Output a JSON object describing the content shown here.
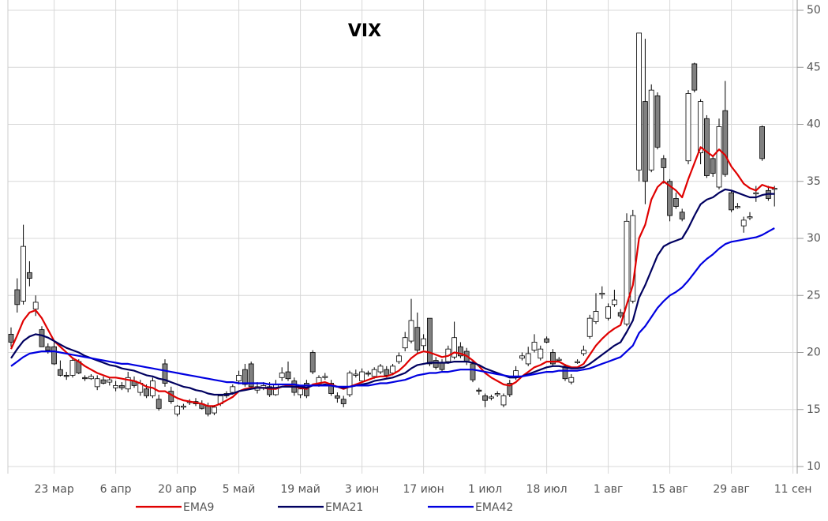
{
  "chart_data": {
    "type": "candlestick",
    "title": "VIX",
    "categories": [
      null,
      null,
      null,
      null,
      null,
      null,
      null,
      "23 мар",
      null,
      null,
      null,
      null,
      null,
      null,
      null,
      null,
      null,
      "6 апр",
      null,
      null,
      null,
      null,
      null,
      null,
      null,
      null,
      null,
      "20 апр",
      null,
      null,
      null,
      null,
      null,
      null,
      null,
      null,
      null,
      "5 май",
      null,
      null,
      null,
      null,
      null,
      null,
      null,
      null,
      null,
      "19 май",
      null,
      null,
      null,
      null,
      null,
      null,
      null,
      null,
      null,
      "3 июн",
      null,
      null,
      null,
      null,
      null,
      null,
      null,
      null,
      null,
      "17 июн",
      null,
      null,
      null,
      null,
      null,
      null,
      null,
      null,
      null,
      "1 июл",
      null,
      null,
      null,
      null,
      null,
      null,
      null,
      null,
      null,
      "18 июл",
      null,
      null,
      null,
      null,
      null,
      null,
      null,
      null,
      null,
      "1 авг",
      null,
      null,
      null,
      null,
      null,
      null,
      null,
      null,
      null,
      "15 авг",
      null,
      null,
      null,
      null,
      null,
      null,
      null,
      null,
      null,
      "29 авг",
      null,
      null,
      null,
      null,
      null,
      null,
      null,
      null,
      null,
      "11 сен"
    ],
    "ohlc": [
      [
        21.6,
        22.2,
        20.5,
        20.9
      ],
      [
        25.5,
        26.5,
        23.5,
        24.2
      ],
      [
        24.5,
        31.2,
        24.2,
        29.3
      ],
      [
        27,
        28,
        25.8,
        26.5
      ],
      [
        23.8,
        25,
        23.2,
        24.4
      ],
      [
        22,
        22.3,
        20.5,
        20.5
      ],
      [
        20.5,
        20.8,
        19.9,
        20.2
      ],
      [
        20.5,
        20.9,
        18.9,
        19
      ],
      [
        18.5,
        19.3,
        17.9,
        18
      ],
      [
        18,
        18.3,
        17.6,
        17.9
      ],
      [
        18,
        19.6,
        17.8,
        19.3
      ],
      [
        19.2,
        19.4,
        18.1,
        18.2
      ],
      [
        17.8,
        18,
        17.5,
        17.7
      ],
      [
        17.7,
        18.1,
        17.6,
        17.9
      ],
      [
        17,
        18,
        16.7,
        17.7
      ],
      [
        17.6,
        17.9,
        17.2,
        17.3
      ],
      [
        17.4,
        17.8,
        17.1,
        17.6
      ],
      [
        16.9,
        17.5,
        16.6,
        17.1
      ],
      [
        17.1,
        17.4,
        16.7,
        16.9
      ],
      [
        16.8,
        18.3,
        16.5,
        17.8
      ],
      [
        17.5,
        17.9,
        16.9,
        17.1
      ],
      [
        16.5,
        17.6,
        16.2,
        17.3
      ],
      [
        16.8,
        17.2,
        16,
        16.2
      ],
      [
        16.2,
        17.8,
        16,
        17.5
      ],
      [
        15.9,
        16.3,
        14.9,
        15.1
      ],
      [
        19,
        19.4,
        17,
        17.3
      ],
      [
        16.6,
        17,
        15.5,
        15.7
      ],
      [
        14.6,
        15.4,
        14.4,
        15.3
      ],
      [
        15.2,
        15.5,
        15,
        15.3
      ],
      [
        15.6,
        15.9,
        15.4,
        15.7
      ],
      [
        15.7,
        16,
        15.3,
        15.5
      ],
      [
        15.5,
        15.8,
        15,
        15.1
      ],
      [
        15.3,
        15.6,
        14.4,
        14.6
      ],
      [
        14.7,
        15.4,
        14.5,
        15.2
      ],
      [
        15.5,
        16.3,
        15.3,
        16.2
      ],
      [
        16.2,
        16.6,
        16,
        16.4
      ],
      [
        16.5,
        17.2,
        16.3,
        17
      ],
      [
        17.5,
        18.4,
        17.2,
        18
      ],
      [
        18.5,
        19,
        17,
        17.2
      ],
      [
        19,
        19.2,
        16.8,
        17
      ],
      [
        16.7,
        17.4,
        16.4,
        17
      ],
      [
        16.9,
        17.4,
        16.7,
        17.1
      ],
      [
        17,
        17.4,
        16.1,
        16.3
      ],
      [
        16.3,
        17.6,
        16.2,
        17.2
      ],
      [
        17.8,
        18.7,
        17.5,
        18.2
      ],
      [
        18.3,
        19.2,
        17.5,
        17.7
      ],
      [
        17.5,
        17.8,
        16.2,
        16.5
      ],
      [
        16.3,
        17,
        16,
        16.8
      ],
      [
        17.3,
        17.6,
        16,
        16.2
      ],
      [
        20,
        20.2,
        18.1,
        18.3
      ],
      [
        17.2,
        18,
        17,
        17.8
      ],
      [
        17.8,
        18.2,
        17.6,
        17.9
      ],
      [
        17.3,
        17.6,
        16.2,
        16.4
      ],
      [
        16.2,
        16.5,
        15.6,
        16
      ],
      [
        15.9,
        16.2,
        15.2,
        15.5
      ],
      [
        16.3,
        18.4,
        16.1,
        18.2
      ],
      [
        18,
        18.5,
        17.8,
        18.1
      ],
      [
        17.5,
        18.6,
        17.3,
        18.3
      ],
      [
        18.2,
        18.4,
        17.9,
        18.1
      ],
      [
        17.9,
        18.7,
        17.7,
        18.5
      ],
      [
        18.3,
        19,
        18.1,
        18.8
      ],
      [
        18.5,
        18.8,
        17.8,
        18
      ],
      [
        18.2,
        19,
        18,
        18.8
      ],
      [
        19.2,
        20,
        19,
        19.7
      ],
      [
        20.4,
        21.8,
        20.1,
        21.3
      ],
      [
        21,
        24.7,
        20.8,
        22.8
      ],
      [
        22.2,
        23.5,
        19.9,
        20.2
      ],
      [
        20.6,
        21.6,
        20.2,
        21.2
      ],
      [
        23,
        23,
        18.8,
        19
      ],
      [
        19.3,
        19.6,
        18.5,
        18.7
      ],
      [
        19.1,
        19.4,
        18.3,
        18.5
      ],
      [
        19.2,
        20.6,
        19,
        20.3
      ],
      [
        19.6,
        22.7,
        19.4,
        21.3
      ],
      [
        20.5,
        20.9,
        19.5,
        19.7
      ],
      [
        20.1,
        20.4,
        18.9,
        19.2
      ],
      [
        19,
        19.3,
        17.4,
        17.6
      ],
      [
        16.7,
        16.9,
        16.3,
        16.6
      ],
      [
        16.2,
        16.4,
        15.2,
        15.8
      ],
      [
        16,
        16.3,
        15.8,
        16.1
      ],
      [
        16.3,
        16.6,
        16.1,
        16.4
      ],
      [
        15.4,
        16.4,
        15.2,
        16.2
      ],
      [
        17.3,
        17.6,
        16.1,
        16.3
      ],
      [
        17.8,
        18.8,
        17.6,
        18.4
      ],
      [
        19.5,
        20,
        19.3,
        19.7
      ],
      [
        19,
        20.5,
        18.8,
        19.9
      ],
      [
        20.2,
        21.6,
        20,
        20.9
      ],
      [
        19.5,
        20.6,
        19.3,
        20.3
      ],
      [
        21.2,
        21.4,
        20.8,
        20.9
      ],
      [
        20,
        20.3,
        18.8,
        19
      ],
      [
        19.3,
        19.6,
        19.1,
        19.4
      ],
      [
        18.8,
        19,
        17.5,
        17.7
      ],
      [
        17.4,
        18.1,
        17.2,
        17.8
      ],
      [
        19.1,
        19.4,
        19,
        19.2
      ],
      [
        19.9,
        20.6,
        19.7,
        20.2
      ],
      [
        21.4,
        23.3,
        21.2,
        23
      ],
      [
        22.7,
        25.2,
        22.5,
        23.6
      ],
      [
        25.1,
        25.8,
        24.7,
        25.2
      ],
      [
        23,
        24.3,
        22.8,
        24
      ],
      [
        24.2,
        25.5,
        24,
        24.6
      ],
      [
        23.5,
        23.8,
        23,
        23.2
      ],
      [
        22.5,
        32.2,
        22.3,
        31.5
      ],
      [
        24.5,
        32.5,
        24.3,
        32
      ],
      [
        36,
        48,
        35,
        48
      ],
      [
        42,
        47.5,
        33,
        35
      ],
      [
        36,
        43.5,
        35.8,
        43
      ],
      [
        42.5,
        42.8,
        37.8,
        38
      ],
      [
        37,
        37.3,
        34.8,
        36.2
      ],
      [
        35,
        35.2,
        31.5,
        32
      ],
      [
        33.5,
        34,
        32.6,
        32.8
      ],
      [
        32.3,
        32.6,
        31.5,
        31.7
      ],
      [
        36.8,
        43,
        36.5,
        42.7
      ],
      [
        45.3,
        45.4,
        42.8,
        43
      ],
      [
        37.5,
        42.2,
        36.5,
        42
      ],
      [
        40.5,
        40.8,
        35.3,
        35.5
      ],
      [
        37,
        37.3,
        35.4,
        35.7
      ],
      [
        34.5,
        40.5,
        34.3,
        39.8
      ],
      [
        41.2,
        43.8,
        35.4,
        35.6
      ],
      [
        34,
        34.2,
        32.3,
        32.5
      ],
      [
        32.7,
        33.1,
        32.6,
        32.8
      ],
      [
        31.1,
        31.9,
        30.5,
        31.6
      ],
      [
        31.8,
        32.3,
        31.6,
        31.9
      ],
      [
        33.9,
        34.6,
        33.2,
        34
      ],
      [
        39.8,
        39.9,
        36.8,
        37
      ],
      [
        34.2,
        34.6,
        33.3,
        33.5
      ],
      [
        34.3,
        34.6,
        32.8,
        34.4
      ],
      null,
      null,
      null
    ],
    "candle_colors": {
      "up": "#ffffff",
      "down": "#808080",
      "edge": "#000000"
    },
    "series": [
      {
        "name": "EMA9",
        "color": "#e00000",
        "values": [
          20.3,
          21.5,
          22.8,
          23.5,
          23.7,
          23,
          22,
          21,
          20.5,
          20,
          19.5,
          19.2,
          18.8,
          18.5,
          18.2,
          18,
          17.8,
          17.8,
          17.7,
          17.6,
          17.5,
          17.3,
          17,
          16.9,
          16.6,
          16.6,
          16.3,
          16,
          15.8,
          15.7,
          15.6,
          15.5,
          15.3,
          15.3,
          15.5,
          15.8,
          16.1,
          16.6,
          16.8,
          16.9,
          16.9,
          16.9,
          16.8,
          16.8,
          17,
          17.1,
          17,
          16.9,
          16.8,
          17.2,
          17.3,
          17.4,
          17.2,
          17,
          16.8,
          17,
          17.2,
          17.4,
          17.6,
          17.8,
          17.9,
          17.9,
          18.1,
          18.4,
          18.9,
          19.5,
          19.9,
          20.1,
          20,
          19.8,
          19.6,
          19.7,
          20,
          19.9,
          19.7,
          19.3,
          18.8,
          18.2,
          17.8,
          17.5,
          17.2,
          17.1,
          17.4,
          17.9,
          18.3,
          18.7,
          18.9,
          19.2,
          19.2,
          19.2,
          18.9,
          18.7,
          18.7,
          19,
          19.8,
          20.6,
          21.2,
          21.7,
          22.1,
          22.4,
          24.2,
          25.9,
          30,
          31.2,
          33.4,
          34.5,
          35,
          34.6,
          34.2,
          33.6,
          35.2,
          36.6,
          38,
          37.6,
          37.2,
          37.8,
          37.3,
          36.3,
          35.6,
          34.8,
          34.4,
          34.2,
          34.7,
          34.5,
          34.4,
          null,
          null,
          null
        ]
      },
      {
        "name": "EMA21",
        "color": "#000060",
        "values": [
          19.5,
          20.3,
          21,
          21.4,
          21.6,
          21.5,
          21.3,
          21,
          20.7,
          20.4,
          20.2,
          20,
          19.7,
          19.5,
          19.3,
          19.1,
          18.9,
          18.8,
          18.6,
          18.5,
          18.4,
          18.2,
          18,
          17.9,
          17.7,
          17.6,
          17.4,
          17.2,
          17,
          16.9,
          16.7,
          16.6,
          16.4,
          16.3,
          16.3,
          16.3,
          16.4,
          16.6,
          16.7,
          16.8,
          16.9,
          16.9,
          16.9,
          16.9,
          17,
          17,
          17,
          17,
          16.9,
          17.1,
          17.1,
          17.2,
          17.1,
          17,
          16.9,
          17,
          17.1,
          17.2,
          17.3,
          17.5,
          17.6,
          17.7,
          17.8,
          18,
          18.2,
          18.6,
          18.9,
          19,
          19.1,
          19.1,
          19.1,
          19.1,
          19.2,
          19.2,
          19.2,
          19.1,
          18.9,
          18.6,
          18.4,
          18.2,
          18,
          17.8,
          17.8,
          17.9,
          18.1,
          18.3,
          18.5,
          18.7,
          18.8,
          18.8,
          18.7,
          18.6,
          18.6,
          18.7,
          19,
          19.4,
          19.8,
          20.2,
          20.6,
          20.9,
          21.8,
          22.8,
          24.8,
          25.9,
          27.2,
          28.5,
          29.3,
          29.6,
          29.8,
          30,
          30.9,
          32,
          33,
          33.4,
          33.6,
          34,
          34.3,
          34.2,
          34,
          33.8,
          33.6,
          33.6,
          33.8,
          33.9,
          33.9,
          null,
          null,
          null
        ]
      },
      {
        "name": "EMA42",
        "color": "#0000e0",
        "values": [
          18.8,
          19.2,
          19.6,
          19.9,
          20,
          20.1,
          20.1,
          20.1,
          20,
          19.9,
          19.8,
          19.7,
          19.6,
          19.5,
          19.4,
          19.3,
          19.2,
          19.1,
          19,
          19,
          18.9,
          18.8,
          18.7,
          18.6,
          18.5,
          18.4,
          18.3,
          18.2,
          18.1,
          18,
          17.9,
          17.8,
          17.7,
          17.6,
          17.5,
          17.4,
          17.4,
          17.3,
          17.3,
          17.3,
          17.3,
          17.3,
          17.2,
          17.2,
          17.2,
          17.2,
          17.2,
          17.1,
          17.1,
          17.1,
          17.1,
          17.1,
          17.1,
          17,
          17,
          17,
          17.1,
          17.1,
          17.1,
          17.2,
          17.3,
          17.3,
          17.4,
          17.5,
          17.6,
          17.8,
          18,
          18.1,
          18.2,
          18.2,
          18.3,
          18.3,
          18.4,
          18.5,
          18.5,
          18.5,
          18.4,
          18.3,
          18.2,
          18.1,
          18,
          17.9,
          17.9,
          17.9,
          18,
          18.1,
          18.2,
          18.3,
          18.3,
          18.4,
          18.4,
          18.4,
          18.4,
          18.5,
          18.6,
          18.8,
          19,
          19.2,
          19.4,
          19.6,
          20.1,
          20.6,
          21.7,
          22.3,
          23.1,
          23.9,
          24.5,
          25,
          25.3,
          25.7,
          26.3,
          27,
          27.7,
          28.2,
          28.6,
          29.1,
          29.5,
          29.7,
          29.8,
          29.9,
          30,
          30.1,
          30.3,
          30.6,
          30.9,
          null,
          null,
          null
        ]
      }
    ],
    "ylim": [
      10,
      50
    ],
    "yticks": [
      10,
      15,
      20,
      25,
      30,
      35,
      40,
      45,
      50
    ],
    "grid": true,
    "legend": "bottom"
  }
}
